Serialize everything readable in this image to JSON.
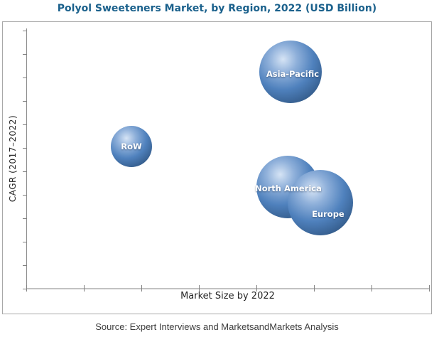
{
  "title": {
    "text": "Polyol Sweeteners Market, by Region, 2022 (USD Billion)"
  },
  "axes": {
    "x_title": "Market Size by 2022",
    "y_title": "CAGR (2017–2022)",
    "x_tick_count": 8,
    "y_tick_count": 12,
    "x_tick_labels": [],
    "y_tick_labels": []
  },
  "source": {
    "text": "Source: Expert Interviews and MarketsandMarkets Analysis"
  },
  "chart_data": {
    "type": "scatter",
    "subtype": "bubble",
    "title": "Polyol Sweeteners Market, by Region, 2022 (USD Billion)",
    "xlabel": "Market Size by 2022",
    "ylabel": "CAGR (2017–2022)",
    "grid": false,
    "legend": "none",
    "axis_numeric_labels_shown": false,
    "series": [
      {
        "name": "Asia-Pacific",
        "x_frac": 0.656,
        "y_frac": 0.833,
        "radius_px": 44,
        "label_dx": 3,
        "label_dy": 3
      },
      {
        "name": "RoW",
        "x_frac": 0.261,
        "y_frac": 0.546,
        "radius_px": 29,
        "label_dx": 0,
        "label_dy": 0
      },
      {
        "name": "North America",
        "x_frac": 0.649,
        "y_frac": 0.391,
        "radius_px": 44,
        "label_dx": 1,
        "label_dy": 2
      },
      {
        "name": "Europe",
        "x_frac": 0.73,
        "y_frac": 0.331,
        "radius_px": 46,
        "label_dx": 11,
        "label_dy": 16
      }
    ]
  },
  "colors": {
    "title_color": "#1b618c",
    "frame_border": "#a8a8a8",
    "y_axis_line": "#8c8c8c",
    "axis_line": "#c2c2c2",
    "axis_tick": "#808080",
    "bubble_highlight": "#d6e4f5",
    "bubble_light": "#8fb0da",
    "bubble_mid": "#4f81bd",
    "bubble_shade": "#3a6496",
    "bubble_dark": "#24466b",
    "text_dark": "#262626",
    "source_color": "#3d3d3d"
  }
}
